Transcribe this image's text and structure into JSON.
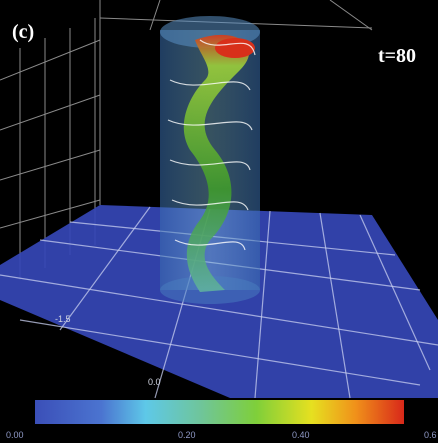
{
  "panel_label": "(c)",
  "time_label": "t=80",
  "axis_labels": [
    "-1.5",
    "0.0"
  ],
  "colorbar": {
    "tick_labels": [
      "0.00",
      "0.20",
      "0.40",
      "0.6"
    ]
  }
}
